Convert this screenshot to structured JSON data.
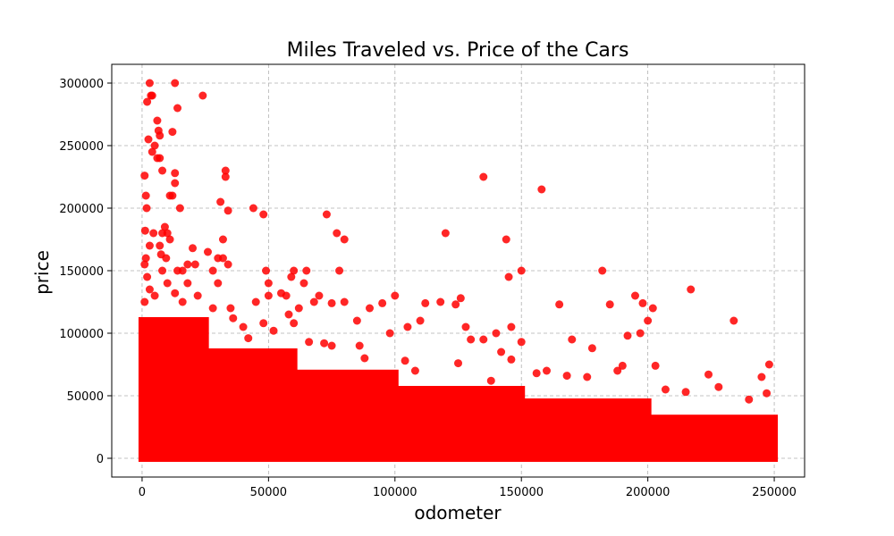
{
  "chart_data": {
    "type": "scatter",
    "title": "Miles Traveled vs. Price of the Cars",
    "xlabel": "odometer",
    "ylabel": "price",
    "xlim": [
      -12000,
      262000
    ],
    "ylim": [
      -15000,
      315000
    ],
    "xticks": [
      0,
      50000,
      100000,
      150000,
      200000,
      250000
    ],
    "yticks": [
      0,
      50000,
      100000,
      150000,
      200000,
      250000,
      300000
    ],
    "grid": true,
    "point_color": "#ff0000",
    "series": [
      {
        "dense_bands": [
          {
            "x": [
              0,
              25000
            ],
            "y": [
              0,
              110000
            ]
          },
          {
            "x": [
              25000,
              60000
            ],
            "y": [
              0,
              85000
            ]
          },
          {
            "x": [
              60000,
              100000
            ],
            "y": [
              0,
              68000
            ]
          },
          {
            "x": [
              100000,
              150000
            ],
            "y": [
              0,
              55000
            ]
          },
          {
            "x": [
              150000,
              200000
            ],
            "y": [
              0,
              45000
            ]
          },
          {
            "x": [
              200000,
              250000
            ],
            "y": [
              0,
              32000
            ]
          }
        ],
        "points": [
          [
            1000,
            226000
          ],
          [
            1500,
            210000
          ],
          [
            1800,
            200000
          ],
          [
            1200,
            182000
          ],
          [
            1500,
            160000
          ],
          [
            1000,
            155000
          ],
          [
            2000,
            285000
          ],
          [
            3000,
            300000
          ],
          [
            3500,
            290000
          ],
          [
            4000,
            290000
          ],
          [
            2500,
            255000
          ],
          [
            5000,
            250000
          ],
          [
            4000,
            245000
          ],
          [
            6000,
            240000
          ],
          [
            7000,
            240000
          ],
          [
            6500,
            262000
          ],
          [
            6000,
            270000
          ],
          [
            7000,
            258000
          ],
          [
            8000,
            230000
          ],
          [
            4500,
            180000
          ],
          [
            3000,
            170000
          ],
          [
            7000,
            170000
          ],
          [
            8000,
            180000
          ],
          [
            9000,
            185000
          ],
          [
            10000,
            180000
          ],
          [
            11000,
            175000
          ],
          [
            7500,
            163000
          ],
          [
            9500,
            160000
          ],
          [
            11000,
            210000
          ],
          [
            12000,
            210000
          ],
          [
            12000,
            261000
          ],
          [
            13000,
            300000
          ],
          [
            14000,
            280000
          ],
          [
            13000,
            228000
          ],
          [
            13000,
            220000
          ],
          [
            15000,
            200000
          ],
          [
            14000,
            150000
          ],
          [
            16000,
            150000
          ],
          [
            18000,
            155000
          ],
          [
            20000,
            168000
          ],
          [
            21000,
            155000
          ],
          [
            24000,
            290000
          ],
          [
            26000,
            165000
          ],
          [
            28000,
            150000
          ],
          [
            30000,
            160000
          ],
          [
            31000,
            205000
          ],
          [
            32000,
            175000
          ],
          [
            32000,
            160000
          ],
          [
            33000,
            225000
          ],
          [
            33000,
            230000
          ],
          [
            34000,
            198000
          ],
          [
            34000,
            155000
          ],
          [
            30000,
            140000
          ],
          [
            35000,
            120000
          ],
          [
            44000,
            200000
          ],
          [
            48000,
            195000
          ],
          [
            49000,
            150000
          ],
          [
            50000,
            140000
          ],
          [
            50000,
            130000
          ],
          [
            45000,
            125000
          ],
          [
            55000,
            132000
          ],
          [
            57000,
            130000
          ],
          [
            60000,
            150000
          ],
          [
            59000,
            145000
          ],
          [
            65000,
            150000
          ],
          [
            64000,
            140000
          ],
          [
            62000,
            120000
          ],
          [
            68000,
            125000
          ],
          [
            70000,
            130000
          ],
          [
            73000,
            195000
          ],
          [
            77000,
            180000
          ],
          [
            78000,
            150000
          ],
          [
            80000,
            175000
          ],
          [
            75000,
            124000
          ],
          [
            80000,
            125000
          ],
          [
            85000,
            110000
          ],
          [
            90000,
            120000
          ],
          [
            95000,
            124000
          ],
          [
            100000,
            130000
          ],
          [
            98000,
            100000
          ],
          [
            105000,
            105000
          ],
          [
            110000,
            110000
          ],
          [
            112000,
            124000
          ],
          [
            118000,
            125000
          ],
          [
            120000,
            180000
          ],
          [
            124000,
            123000
          ],
          [
            126000,
            128000
          ],
          [
            128000,
            105000
          ],
          [
            130000,
            95000
          ],
          [
            135000,
            225000
          ],
          [
            135000,
            95000
          ],
          [
            140000,
            100000
          ],
          [
            142000,
            85000
          ],
          [
            144000,
            175000
          ],
          [
            145000,
            145000
          ],
          [
            146000,
            105000
          ],
          [
            150000,
            150000
          ],
          [
            150000,
            93000
          ],
          [
            158000,
            215000
          ],
          [
            160000,
            70000
          ],
          [
            165000,
            123000
          ],
          [
            170000,
            95000
          ],
          [
            178000,
            88000
          ],
          [
            182000,
            150000
          ],
          [
            185000,
            123000
          ],
          [
            188000,
            70000
          ],
          [
            190000,
            74000
          ],
          [
            192000,
            98000
          ],
          [
            195000,
            130000
          ],
          [
            197000,
            100000
          ],
          [
            198000,
            124000
          ],
          [
            200000,
            110000
          ],
          [
            202000,
            120000
          ],
          [
            203000,
            74000
          ],
          [
            217000,
            135000
          ],
          [
            224000,
            67000
          ],
          [
            234000,
            110000
          ],
          [
            245000,
            65000
          ],
          [
            248000,
            75000
          ],
          [
            247000,
            52000
          ],
          [
            240000,
            47000
          ],
          [
            228000,
            57000
          ],
          [
            215000,
            53000
          ],
          [
            207000,
            55000
          ],
          [
            176000,
            65000
          ],
          [
            168000,
            66000
          ],
          [
            156000,
            68000
          ],
          [
            146000,
            79000
          ],
          [
            138000,
            62000
          ],
          [
            125000,
            76000
          ],
          [
            108000,
            70000
          ],
          [
            104000,
            78000
          ],
          [
            96000,
            62000
          ],
          [
            88000,
            80000
          ],
          [
            86000,
            90000
          ],
          [
            75000,
            90000
          ],
          [
            72000,
            92000
          ],
          [
            66000,
            93000
          ],
          [
            60000,
            108000
          ],
          [
            58000,
            115000
          ],
          [
            52000,
            102000
          ],
          [
            48000,
            108000
          ],
          [
            42000,
            96000
          ],
          [
            40000,
            105000
          ],
          [
            36000,
            112000
          ],
          [
            28000,
            120000
          ],
          [
            22000,
            130000
          ],
          [
            18000,
            140000
          ],
          [
            16000,
            125000
          ],
          [
            13000,
            132000
          ],
          [
            10000,
            140000
          ],
          [
            8000,
            150000
          ],
          [
            5000,
            130000
          ],
          [
            3000,
            135000
          ],
          [
            2000,
            145000
          ],
          [
            1000,
            125000
          ]
        ]
      }
    ]
  }
}
